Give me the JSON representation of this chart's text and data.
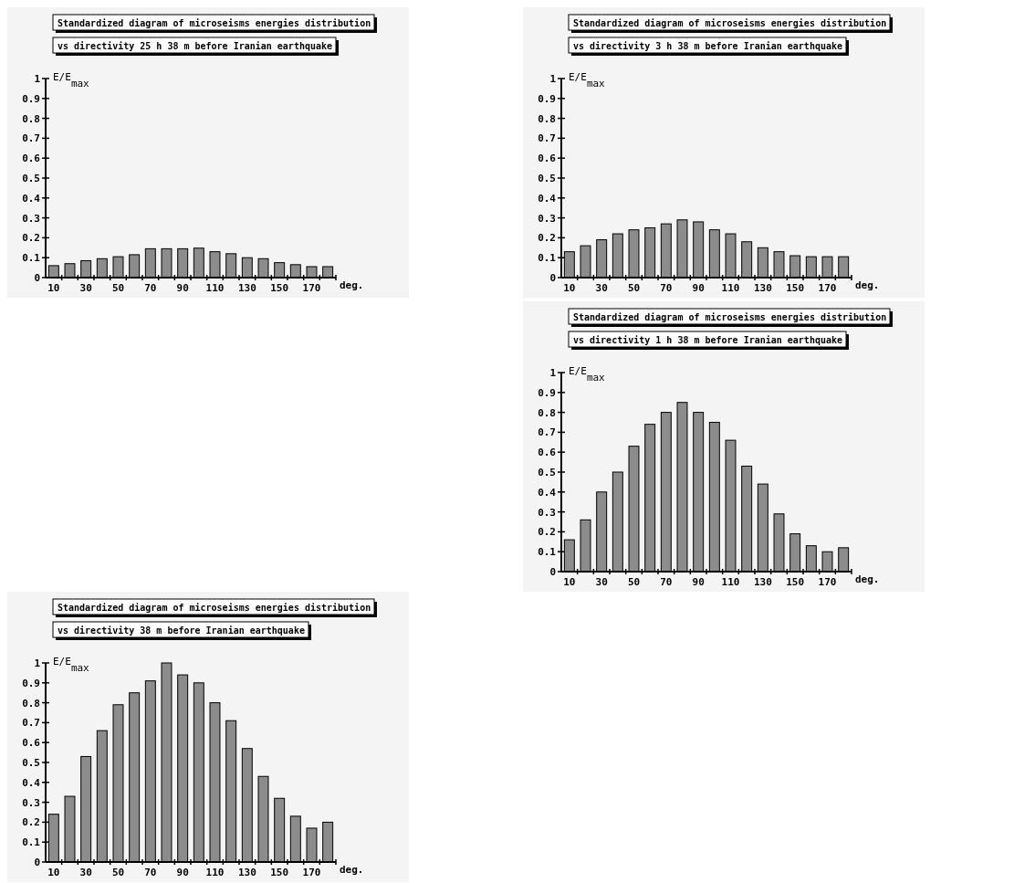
{
  "chart_data": [
    {
      "type": "bar",
      "title": "Standardized diagram of microseisms energies distribution",
      "subtitle": "vs directivity 25 h 38 m before Iranian earthquake",
      "ylabel": "E/E$_{max}$",
      "xlabel": "deg.",
      "categories": [
        "10",
        null,
        "30",
        null,
        "50",
        null,
        "70",
        null,
        "90",
        null,
        "110",
        null,
        "130",
        null,
        "150",
        null,
        "170",
        null
      ],
      "color": "#8c8c8c",
      "values": [
        0.06,
        0.07,
        0.085,
        0.095,
        0.105,
        0.115,
        0.145,
        0.145,
        0.145,
        0.148,
        0.13,
        0.12,
        0.1,
        0.095,
        0.075,
        0.065,
        0.055,
        0.055
      ],
      "ylim": [
        0,
        1
      ],
      "yticks": [
        0,
        0.1,
        0.2,
        0.3,
        0.4,
        0.5,
        0.6,
        0.7,
        0.8,
        0.9,
        1
      ],
      "grid": false
    },
    {
      "type": "bar",
      "title": "Standardized diagram of microseisms energies distribution",
      "subtitle": "vs directivity 3 h 38 m before Iranian earthquake",
      "ylabel": "E/E$_{max}$",
      "xlabel": "deg.",
      "categories": [
        "10",
        null,
        "30",
        null,
        "50",
        null,
        "70",
        null,
        "90",
        null,
        "110",
        null,
        "130",
        null,
        "150",
        null,
        "170",
        null
      ],
      "color": "#8c8c8c",
      "values": [
        0.13,
        0.16,
        0.19,
        0.22,
        0.24,
        0.25,
        0.27,
        0.29,
        0.28,
        0.24,
        0.22,
        0.18,
        0.15,
        0.13,
        0.11,
        0.105,
        0.105,
        0.105
      ],
      "ylim": [
        0,
        1
      ],
      "yticks": [
        0,
        0.1,
        0.2,
        0.3,
        0.4,
        0.5,
        0.6,
        0.7,
        0.8,
        0.9,
        1
      ],
      "grid": false
    },
    {
      "type": "bar",
      "title": "Standardized diagram of microseisms energies distribution",
      "subtitle": "vs directivity 1 h 38 m before Iranian earthquake",
      "ylabel": "E/E$_{max}$",
      "xlabel": "deg.",
      "categories": [
        "10",
        null,
        "30",
        null,
        "50",
        null,
        "70",
        null,
        "90",
        null,
        "110",
        null,
        "130",
        null,
        "150",
        null,
        "170",
        null
      ],
      "color": "#8c8c8c",
      "values": [
        0.16,
        0.26,
        0.4,
        0.5,
        0.63,
        0.74,
        0.8,
        0.85,
        0.8,
        0.75,
        0.66,
        0.53,
        0.44,
        0.29,
        0.19,
        0.13,
        0.1,
        0.12
      ],
      "ylim": [
        0,
        1
      ],
      "yticks": [
        0,
        0.1,
        0.2,
        0.3,
        0.4,
        0.5,
        0.6,
        0.7,
        0.8,
        0.9,
        1
      ],
      "grid": false
    },
    {
      "type": "bar",
      "title": "Standardized diagram of microseisms energies distribution",
      "subtitle": "vs directivity 38 m before Iranian earthquake",
      "ylabel": "E/E$_{max}$",
      "xlabel": "deg.",
      "categories": [
        "10",
        null,
        "30",
        null,
        "50",
        null,
        "70",
        null,
        "90",
        null,
        "110",
        null,
        "130",
        null,
        "150",
        null,
        "170",
        null
      ],
      "color": "#8c8c8c",
      "values": [
        0.24,
        0.33,
        0.53,
        0.66,
        0.79,
        0.85,
        0.91,
        1.0,
        0.94,
        0.9,
        0.8,
        0.71,
        0.57,
        0.43,
        0.32,
        0.23,
        0.17,
        0.2
      ],
      "ylim": [
        0,
        1
      ],
      "yticks": [
        0,
        0.1,
        0.2,
        0.3,
        0.4,
        0.5,
        0.6,
        0.7,
        0.8,
        0.9,
        1
      ],
      "grid": false
    }
  ]
}
